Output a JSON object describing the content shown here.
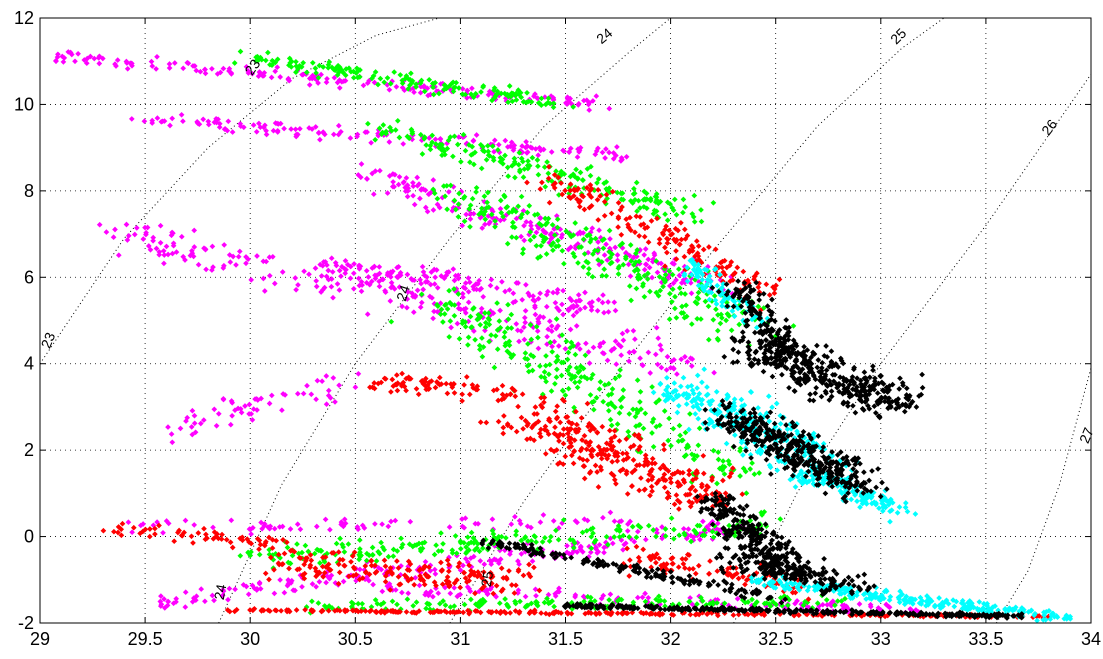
{
  "chart_data": {
    "type": "scatter",
    "title": "",
    "xlabel": "",
    "ylabel": "",
    "xlim": [
      29,
      34
    ],
    "ylim": [
      -2,
      12
    ],
    "grid": true,
    "xticks": [
      "29",
      "29.5",
      "30",
      "30.5",
      "31",
      "31.5",
      "32",
      "32.5",
      "33",
      "33.5",
      "34"
    ],
    "yticks": [
      "-2",
      "0",
      "2",
      "4",
      "6",
      "8",
      "10",
      "12"
    ],
    "contour_lines": [
      {
        "value": 23,
        "label": "23",
        "points": [
          [
            29.0,
            4.0
          ],
          [
            29.4,
            6.9
          ],
          [
            29.8,
            9.0
          ],
          [
            30.2,
            10.6
          ],
          [
            30.6,
            11.6
          ],
          [
            30.9,
            12.0
          ]
        ]
      },
      {
        "value": 24,
        "label": "24",
        "points": [
          [
            29.85,
            -2.0
          ],
          [
            30.15,
            1.2
          ],
          [
            30.5,
            4.0
          ],
          [
            30.95,
            6.9
          ],
          [
            31.4,
            9.5
          ],
          [
            31.8,
            11.2
          ],
          [
            32.0,
            12.0
          ]
        ]
      },
      {
        "value": 25,
        "label": "25",
        "points": [
          [
            30.95,
            -2.0
          ],
          [
            31.3,
            0.8
          ],
          [
            31.7,
            3.5
          ],
          [
            32.2,
            6.6
          ],
          [
            32.7,
            9.5
          ],
          [
            33.1,
            11.3
          ],
          [
            33.3,
            12.0
          ]
        ]
      },
      {
        "value": 26,
        "label": "26",
        "points": [
          [
            32.3,
            -2.0
          ],
          [
            32.6,
            1.0
          ],
          [
            33.0,
            4.0
          ],
          [
            33.5,
            7.2
          ],
          [
            33.8,
            9.3
          ],
          [
            34.0,
            10.7
          ]
        ]
      },
      {
        "value": 27,
        "label": "27",
        "points": [
          [
            33.55,
            -2.0
          ],
          [
            33.7,
            -0.8
          ],
          [
            33.85,
            1.2
          ],
          [
            34.0,
            3.9
          ]
        ]
      }
    ],
    "contour_annotations": [
      {
        "label": "23",
        "x": 29.06,
        "y": 4.5,
        "angle": -68
      },
      {
        "label": "23",
        "x": 30.03,
        "y": 10.8,
        "angle": -55
      },
      {
        "label": "24",
        "x": 29.88,
        "y": -1.3,
        "angle": -80
      },
      {
        "label": "24",
        "x": 30.75,
        "y": 5.6,
        "angle": -72
      },
      {
        "label": "24",
        "x": 31.7,
        "y": 11.5,
        "angle": -40
      },
      {
        "label": "25",
        "x": 31.15,
        "y": -1.0,
        "angle": -80
      },
      {
        "label": "25",
        "x": 33.1,
        "y": 11.5,
        "angle": -45
      },
      {
        "label": "26",
        "x": 33.82,
        "y": 9.4,
        "angle": -52
      },
      {
        "label": "27",
        "x": 34.0,
        "y": 2.3,
        "angle": -68
      }
    ],
    "series": [
      {
        "color": "#ff00ff",
        "clusters": [
          {
            "from": [
              29.1,
              11.1
            ],
            "to": [
              31.7,
              10.0
            ],
            "count": 180,
            "spread": 0.15
          },
          {
            "from": [
              29.5,
              9.7
            ],
            "to": [
              31.8,
              8.8
            ],
            "count": 160,
            "spread": 0.18
          },
          {
            "from": [
              30.5,
              8.5
            ],
            "to": [
              32.2,
              5.8
            ],
            "count": 220,
            "spread": 0.35
          },
          {
            "from": [
              29.4,
              7.0
            ],
            "to": [
              32.1,
              4.0
            ],
            "count": 260,
            "spread": 0.45
          },
          {
            "from": [
              30.4,
              6.3
            ],
            "to": [
              31.7,
              5.3
            ],
            "count": 160,
            "spread": 0.3
          },
          {
            "from": [
              29.6,
              2.5
            ],
            "to": [
              30.5,
              3.6
            ],
            "count": 60,
            "spread": 0.35
          },
          {
            "from": [
              29.55,
              -1.5
            ],
            "to": [
              32.3,
              0.2
            ],
            "count": 220,
            "spread": 0.25
          },
          {
            "from": [
              30.6,
              -1.2
            ],
            "to": [
              33.2,
              -1.7
            ],
            "count": 140,
            "spread": 0.15
          },
          {
            "from": [
              29.5,
              0.2
            ],
            "to": [
              31.8,
              0.4
            ],
            "count": 80,
            "spread": 0.2
          }
        ]
      },
      {
        "color": "#00ff00",
        "clusters": [
          {
            "from": [
              30.0,
              11.1
            ],
            "to": [
              31.5,
              10.0
            ],
            "count": 160,
            "spread": 0.2
          },
          {
            "from": [
              30.6,
              9.5
            ],
            "to": [
              32.1,
              7.5
            ],
            "count": 200,
            "spread": 0.3
          },
          {
            "from": [
              31.0,
              8.0
            ],
            "to": [
              32.4,
              4.8
            ],
            "count": 260,
            "spread": 0.5
          },
          {
            "from": [
              30.9,
              5.5
            ],
            "to": [
              32.3,
              1.5
            ],
            "count": 260,
            "spread": 0.55
          },
          {
            "from": [
              30.0,
              -0.5
            ],
            "to": [
              32.5,
              0.3
            ],
            "count": 220,
            "spread": 0.3
          },
          {
            "from": [
              30.3,
              -1.6
            ],
            "to": [
              32.8,
              -1.5
            ],
            "count": 160,
            "spread": 0.15
          }
        ]
      },
      {
        "color": "#ff0000",
        "clusters": [
          {
            "from": [
              31.4,
              8.3
            ],
            "to": [
              32.5,
              5.6
            ],
            "count": 170,
            "spread": 0.35
          },
          {
            "from": [
              30.6,
              3.6
            ],
            "to": [
              31.3,
              3.3
            ],
            "count": 80,
            "spread": 0.25
          },
          {
            "from": [
              31.3,
              2.8
            ],
            "to": [
              32.2,
              0.9
            ],
            "count": 300,
            "spread": 0.55
          },
          {
            "from": [
              29.3,
              0.2
            ],
            "to": [
              30.2,
              -0.2
            ],
            "count": 60,
            "spread": 0.2
          },
          {
            "from": [
              30.1,
              -0.6
            ],
            "to": [
              31.3,
              -1.0
            ],
            "count": 180,
            "spread": 0.35
          },
          {
            "from": [
              29.85,
              -1.7
            ],
            "to": [
              33.8,
              -1.85
            ],
            "count": 280,
            "spread": 0.04
          },
          {
            "from": [
              31.8,
              -0.5
            ],
            "to": [
              32.7,
              -1.2
            ],
            "count": 100,
            "spread": 0.3
          }
        ]
      },
      {
        "color": "#00ffff",
        "clusters": [
          {
            "from": [
              32.1,
              6.3
            ],
            "to": [
              32.4,
              5.0
            ],
            "count": 90,
            "spread": 0.2
          },
          {
            "from": [
              32.0,
              3.5
            ],
            "to": [
              32.8,
              1.5
            ],
            "count": 260,
            "spread": 0.45
          },
          {
            "from": [
              32.6,
              1.5
            ],
            "to": [
              33.1,
              0.6
            ],
            "count": 140,
            "spread": 0.25
          },
          {
            "from": [
              32.4,
              -1.0
            ],
            "to": [
              33.9,
              -1.9
            ],
            "count": 260,
            "spread": 0.15
          }
        ]
      },
      {
        "color": "#000000",
        "clusters": [
          {
            "from": [
              32.3,
              5.8
            ],
            "to": [
              32.6,
              4.0
            ],
            "count": 140,
            "spread": 0.25
          },
          {
            "from": [
              32.4,
              4.4
            ],
            "to": [
              33.1,
              3.0
            ],
            "count": 380,
            "spread": 0.45
          },
          {
            "from": [
              32.3,
              2.8
            ],
            "to": [
              32.9,
              1.2
            ],
            "count": 380,
            "spread": 0.4
          },
          {
            "from": [
              32.2,
              0.8
            ],
            "to": [
              32.6,
              -0.8
            ],
            "count": 240,
            "spread": 0.3
          },
          {
            "from": [
              31.5,
              -1.6
            ],
            "to": [
              33.7,
              -1.85
            ],
            "count": 320,
            "spread": 0.05
          },
          {
            "from": [
              31.1,
              -0.1
            ],
            "to": [
              32.5,
              -1.4
            ],
            "count": 160,
            "spread": 0.12
          },
          {
            "from": [
              32.3,
              -0.5
            ],
            "to": [
              32.9,
              -1.2
            ],
            "count": 160,
            "spread": 0.3
          }
        ]
      }
    ]
  }
}
